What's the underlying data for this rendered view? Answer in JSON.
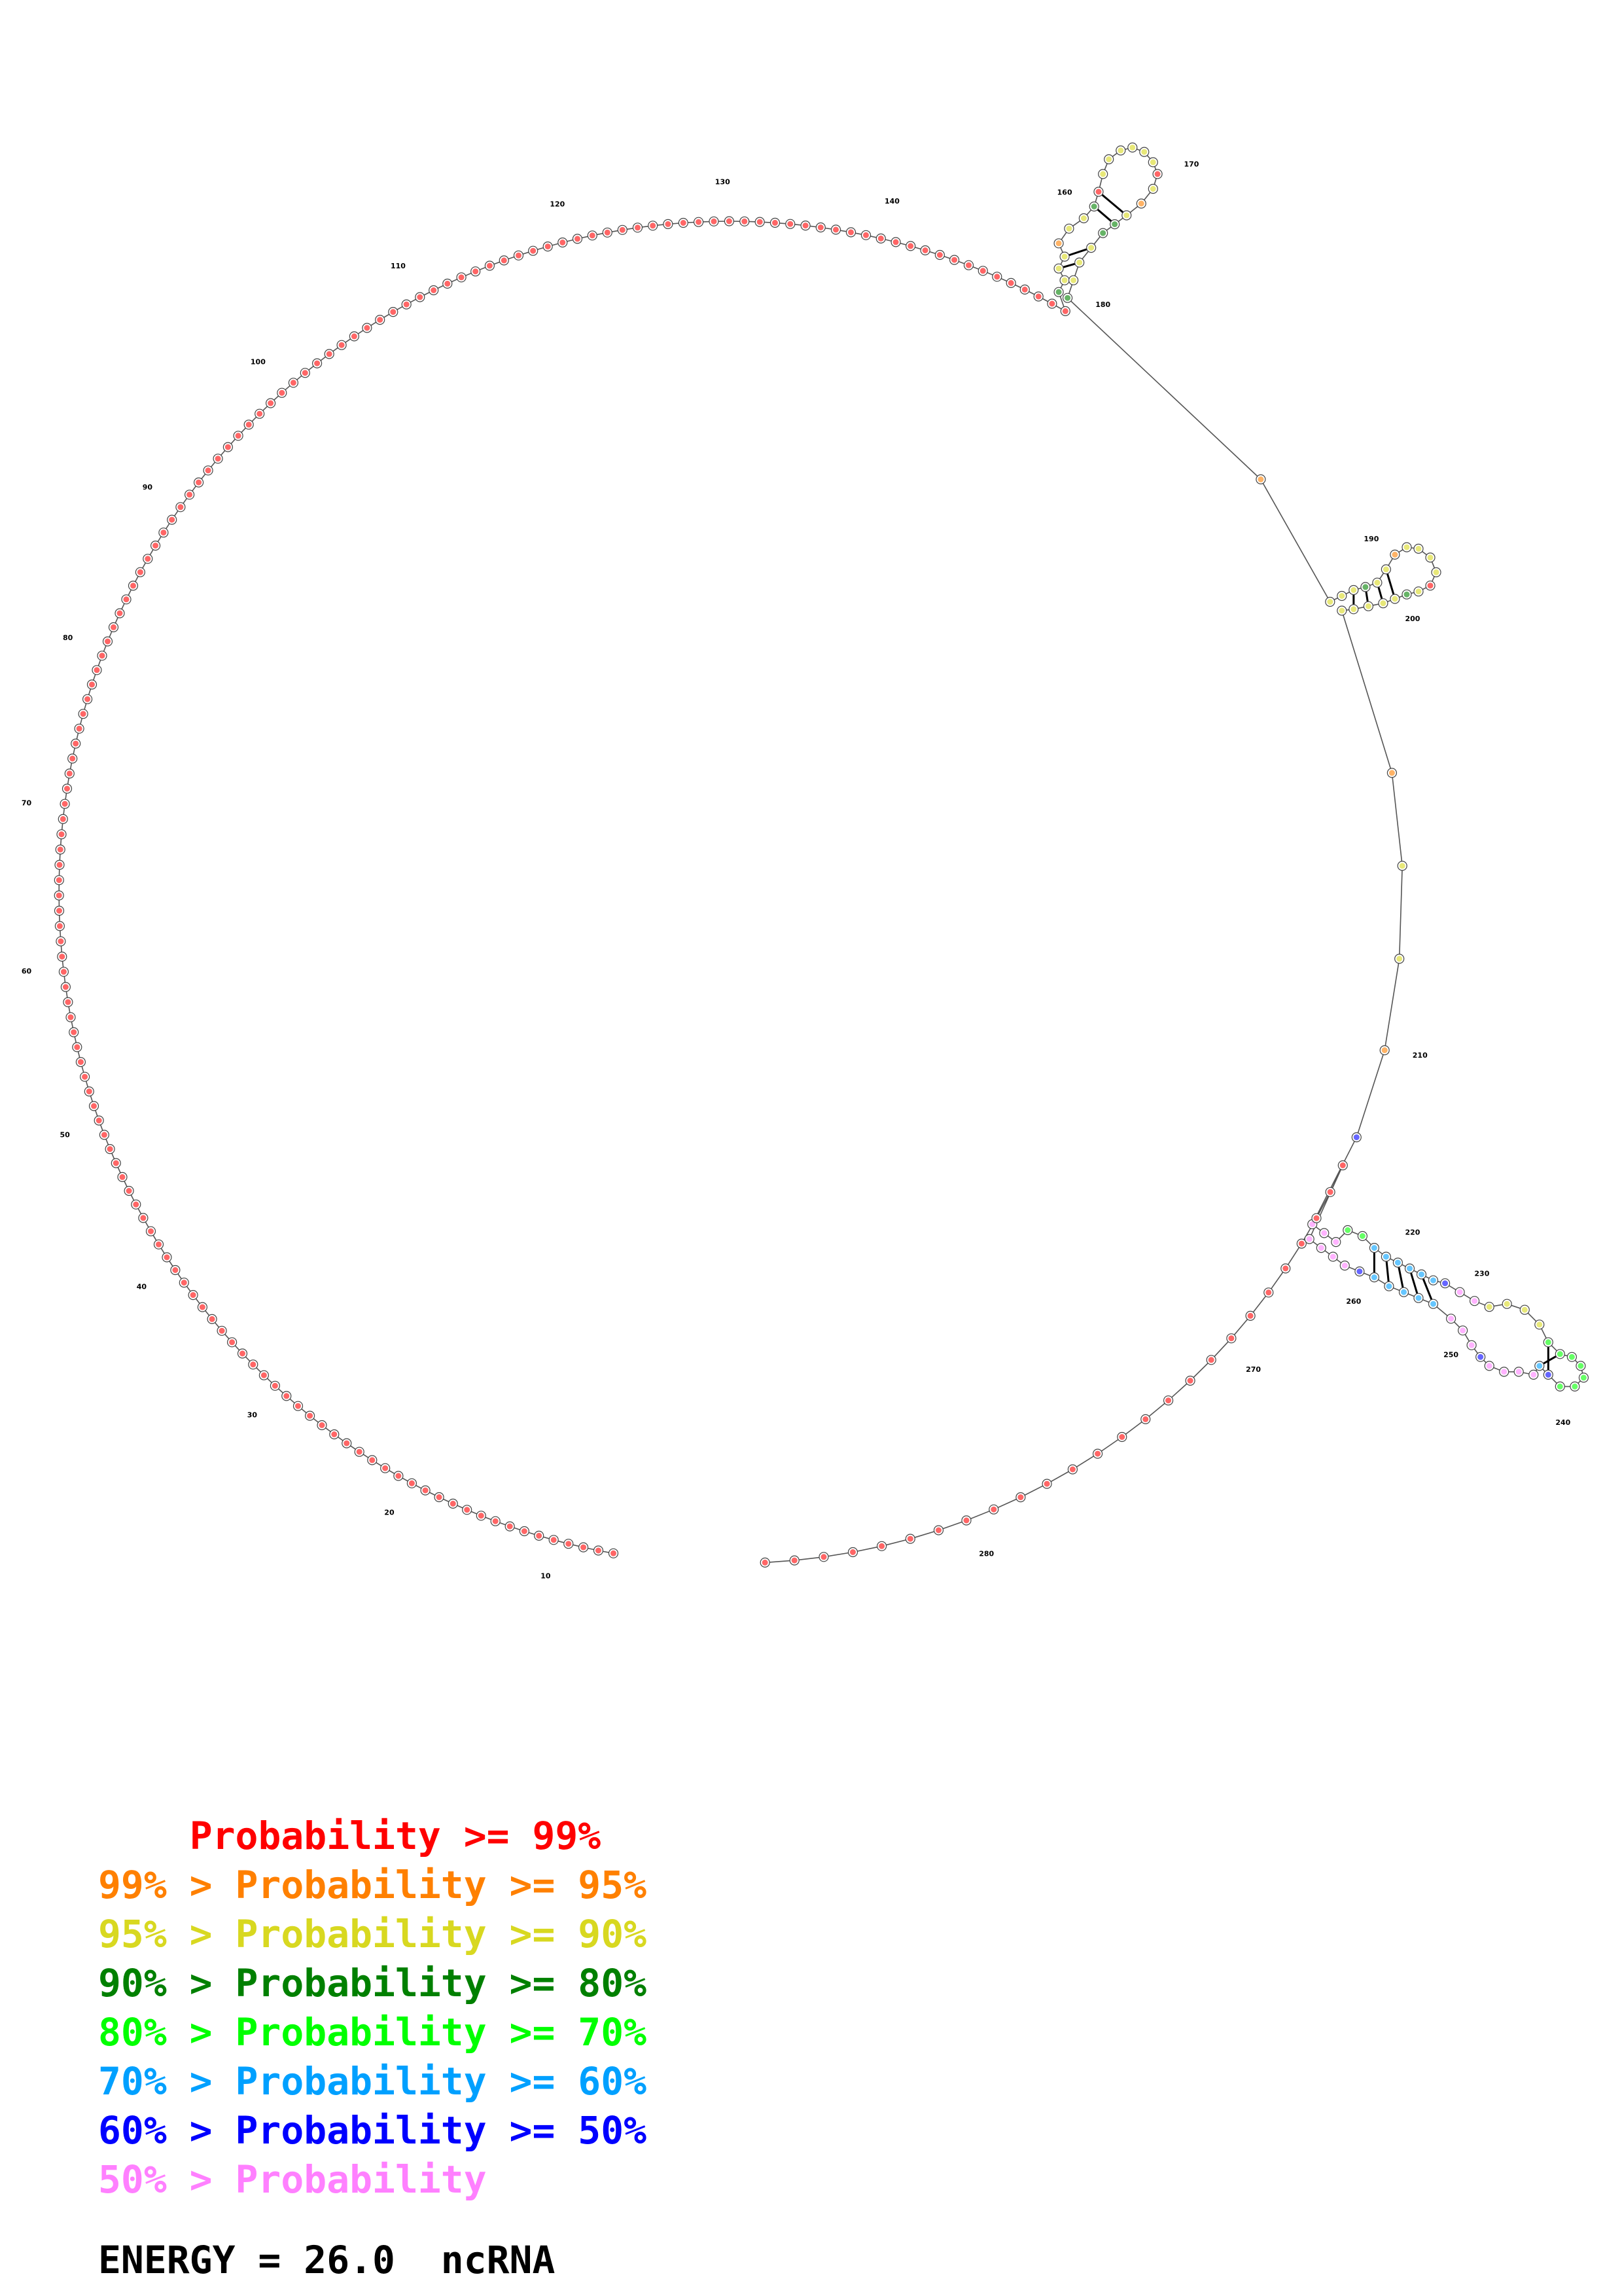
{
  "structure": {
    "sequence_length": 290,
    "tick_labels": [
      "10",
      "20",
      "30",
      "40",
      "50",
      "60",
      "70",
      "80",
      "90",
      "100",
      "110",
      "120",
      "130",
      "140",
      "160",
      "170",
      "180",
      "190",
      "200",
      "210",
      "220",
      "230",
      "240",
      "250",
      "260",
      "270",
      "280"
    ],
    "colors": {
      "p99": "#ff0000",
      "p95": "#ff8000",
      "p90": "#d8d820",
      "p80": "#008000",
      "p70": "#00ff00",
      "p60": "#00a0ff",
      "p50": "#0000ff",
      "plow": "#ff80ff"
    }
  },
  "legend": {
    "items": [
      {
        "prefix": "    ",
        "text": "Probability >= 99%",
        "color": "#ff0000"
      },
      {
        "prefix": "99% > ",
        "text": "Probability >= 95%",
        "color": "#ff8000"
      },
      {
        "prefix": "95% > ",
        "text": "Probability >= 90%",
        "color": "#d8d820"
      },
      {
        "prefix": "90% > ",
        "text": "Probability >= 80%",
        "color": "#008000"
      },
      {
        "prefix": "80% > ",
        "text": "Probability >= 70%",
        "color": "#00ff00"
      },
      {
        "prefix": "70% > ",
        "text": "Probability >= 60%",
        "color": "#00a0ff"
      },
      {
        "prefix": "60% > ",
        "text": "Probability >= 50%",
        "color": "#0000ff"
      },
      {
        "prefix": "50% > ",
        "text": "Probability",
        "color": "#ff80ff"
      }
    ],
    "energy": "ENERGY = 26.0  ncRNA"
  }
}
